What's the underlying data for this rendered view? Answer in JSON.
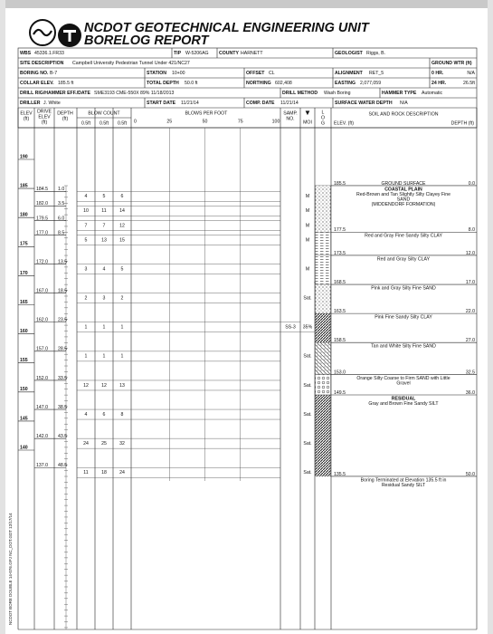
{
  "header": {
    "title": "NCDOT GEOTECHNICAL ENGINEERING UNIT",
    "subtitle": "BORELOG REPORT",
    "rows": [
      [
        {
          "label": "WBS",
          "value": "45336.1.FR33"
        },
        {
          "label": "TIP",
          "value": "W-5206AG"
        },
        {
          "label": "COUNTY",
          "value": "HARNETT"
        },
        {
          "label": "GEOLOGIST",
          "value": "Riggs, B."
        }
      ],
      [
        {
          "label": "SITE DESCRIPTION",
          "value": "Campbell University Pedestrian Tunnel Under 421/NC27"
        },
        {
          "label": "GROUND WTR (ft)"
        }
      ],
      [
        {
          "label": "BORING NO.",
          "value": "B-7"
        },
        {
          "label": "STATION",
          "value": "10+00"
        },
        {
          "label": "OFFSET",
          "value": "CL"
        },
        {
          "label": "ALIGNMENT",
          "value": "RET_5"
        },
        {
          "label": "0 HR.",
          "value": "N/A"
        }
      ],
      [
        {
          "label": "COLLAR ELEV.",
          "value": "185.5 ft"
        },
        {
          "label": "TOTAL DEPTH",
          "value": "50.0 ft"
        },
        {
          "label": "NORTHING",
          "value": "602,408"
        },
        {
          "label": "EASTING",
          "value": "2,077,059"
        },
        {
          "label": "24 HR.",
          "value": "26.5ft"
        }
      ],
      [
        {
          "label": "DRILL RIG/HAMMER EFF./DATE",
          "value": "SME3193 CME-550X 89% 11/18/2013"
        },
        {
          "label": "DRILL METHOD",
          "value": "Wash Boring"
        },
        {
          "label": "HAMMER TYPE",
          "value": "Automatic"
        }
      ],
      [
        {
          "label": "DRILLER",
          "value": "J. White"
        },
        {
          "label": "START DATE",
          "value": "11/21/14"
        },
        {
          "label": "COMP. DATE",
          "value": "11/21/14"
        },
        {
          "label": "SURFACE WATER DEPTH",
          "value": "N/A"
        }
      ]
    ]
  },
  "columns": {
    "elev": [
      "ELEV",
      "(ft)"
    ],
    "drive_elev": [
      "DRIVE",
      "ELEV",
      "(ft)"
    ],
    "depth": [
      "DEPTH",
      "(ft)"
    ],
    "blow_count": "BLOW COUNT",
    "blow_sub": [
      "0.5ft",
      "0.5ft",
      "0.5ft"
    ],
    "blows_per_foot": "BLOWS PER FOOT",
    "samp": [
      "SAMP.",
      "NO."
    ],
    "moi": "MOI",
    "log": [
      "L",
      "O",
      "G"
    ],
    "description": "SOIL AND ROCK DESCRIPTION",
    "desc_elev": "ELEV. (ft)",
    "desc_depth": "DEPTH (ft)"
  },
  "log": {
    "elev_ticks": [
      190,
      185,
      180,
      175,
      170,
      165,
      160,
      155,
      150,
      145,
      140
    ],
    "blow_ticks": [
      0,
      25,
      50,
      75,
      100
    ],
    "samples": [
      {
        "drive_elev": "184.5",
        "depth": "1.0",
        "blows": [
          "4",
          "5",
          "6"
        ],
        "moisture": "M"
      },
      {
        "drive_elev": "182.0",
        "depth": "3.5",
        "blows": [
          "10",
          "11",
          "14"
        ],
        "moisture": "M"
      },
      {
        "drive_elev": "179.5",
        "depth": "6.0",
        "blows": [
          "7",
          "7",
          "12"
        ],
        "moisture": "M"
      },
      {
        "drive_elev": "177.0",
        "depth": "8.5",
        "blows": [
          "5",
          "13",
          "15"
        ],
        "moisture": "M"
      },
      {
        "drive_elev": "172.0",
        "depth": "13.5",
        "blows": [
          "3",
          "4",
          "5"
        ],
        "moisture": "M"
      },
      {
        "drive_elev": "167.0",
        "depth": "18.5",
        "blows": [
          "2",
          "3",
          "2"
        ],
        "moisture": "Sat."
      },
      {
        "drive_elev": "162.0",
        "depth": "23.5",
        "blows": [
          "1",
          "1",
          "1"
        ],
        "sample": "SS-3",
        "moisture": "35%"
      },
      {
        "drive_elev": "157.0",
        "depth": "28.5",
        "blows": [
          "1",
          "1",
          "1"
        ],
        "moisture": "Sat."
      },
      {
        "drive_elev": "152.0",
        "depth": "33.5",
        "blows": [
          "12",
          "12",
          "13"
        ],
        "moisture": "Sat."
      },
      {
        "drive_elev": "147.0",
        "depth": "38.5",
        "blows": [
          "4",
          "6",
          "8"
        ],
        "moisture": "Sat."
      },
      {
        "drive_elev": "142.0",
        "depth": "43.5",
        "blows": [
          "24",
          "25",
          "32"
        ],
        "moisture": "Sat."
      },
      {
        "drive_elev": "137.0",
        "depth": "48.5",
        "blows": [
          "11",
          "18",
          "24"
        ],
        "moisture": "Sat."
      }
    ],
    "strata": [
      {
        "elev": "185.5",
        "depth": "0.0",
        "label": "GROUND SURFACE",
        "heading": "COASTAL PLAIN",
        "desc": [
          "Red-Brown and Tan Slightly Silty Clayey Fine",
          "SAND",
          "(MIDDENDORF FORMATION)"
        ]
      },
      {
        "elev": "177.5",
        "depth": "8.0",
        "desc": [
          "Red and Gray Fine Sandy Silty CLAY"
        ]
      },
      {
        "elev": "173.5",
        "depth": "12.0",
        "desc": [
          "Red and Gray Silty CLAY"
        ]
      },
      {
        "elev": "168.5",
        "depth": "17.0",
        "desc": [
          "Pink and Gray Silty Fine SAND"
        ]
      },
      {
        "elev": "163.5",
        "depth": "22.0",
        "desc": [
          "Pink Fine Sandy Silty CLAY"
        ]
      },
      {
        "elev": "158.5",
        "depth": "27.0",
        "desc": [
          "Tan and White Silty Fine SAND"
        ]
      },
      {
        "elev": "153.0",
        "depth": "32.5",
        "desc": [
          "Orange Silty Coarse to Firm SAND with Little",
          "Gravel"
        ]
      },
      {
        "elev": "149.5",
        "depth": "36.0",
        "heading": "RESIDUAL",
        "desc": [
          "Gray and Brown Fine Sandy SILT"
        ]
      },
      {
        "elev": "135.5",
        "depth": "50.0",
        "desc": [
          "Boring Terminated at Elevation 135.5 ft in",
          "Residual Sandy SILT"
        ]
      }
    ]
  },
  "footer": {
    "side_text": "NCDOT BORE DOUBLE  14-076.GPJ  NC_DOT.GDT  12/17/14"
  }
}
